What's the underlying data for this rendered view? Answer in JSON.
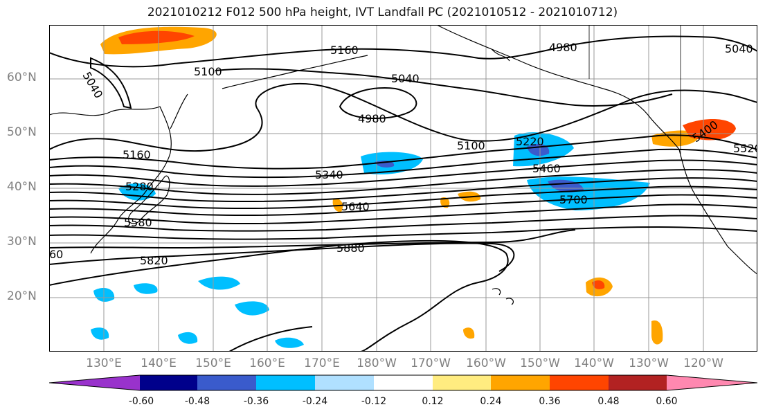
{
  "title": "2021010212 F012 500 hPa height, IVT Landfall PC (2021010512 - 2021010712)",
  "lat_labels": [
    "60°N",
    "50°N",
    "40°N",
    "30°N",
    "20°N"
  ],
  "lon_labels": [
    "130°E",
    "140°E",
    "150°E",
    "160°E",
    "170°E",
    "180°W",
    "170°W",
    "160°W",
    "150°W",
    "140°W",
    "130°W",
    "120°W"
  ],
  "contour_labels": [
    "5160",
    "4980",
    "5040",
    "5100",
    "5040",
    "4980",
    "5040",
    "5100",
    "5160",
    "5220",
    "5280",
    "5340",
    "5460",
    "5400",
    "5520",
    "5580",
    "5640",
    "5700",
    "5820",
    "5880",
    "60"
  ],
  "colorbar": {
    "ticks": [
      "-0.60",
      "-0.48",
      "-0.36",
      "-0.24",
      "-0.12",
      "0.12",
      "0.24",
      "0.36",
      "0.48",
      "0.60"
    ],
    "colors": [
      "#9932cc",
      "#00008b",
      "#3a5bcc",
      "#00bfff",
      "#b0e0ff",
      "#ffffff",
      "#ffec80",
      "#ffa500",
      "#ff4500",
      "#b22222",
      "#ff88b0"
    ]
  },
  "colors": {
    "contour": "#000000",
    "coast": "#000000",
    "grid": "#999999",
    "neg_shade": "#00bfff",
    "neg_dark": "#3a5bcc",
    "pos_shade": "#ffa500",
    "pos_dark": "#ff4500"
  }
}
